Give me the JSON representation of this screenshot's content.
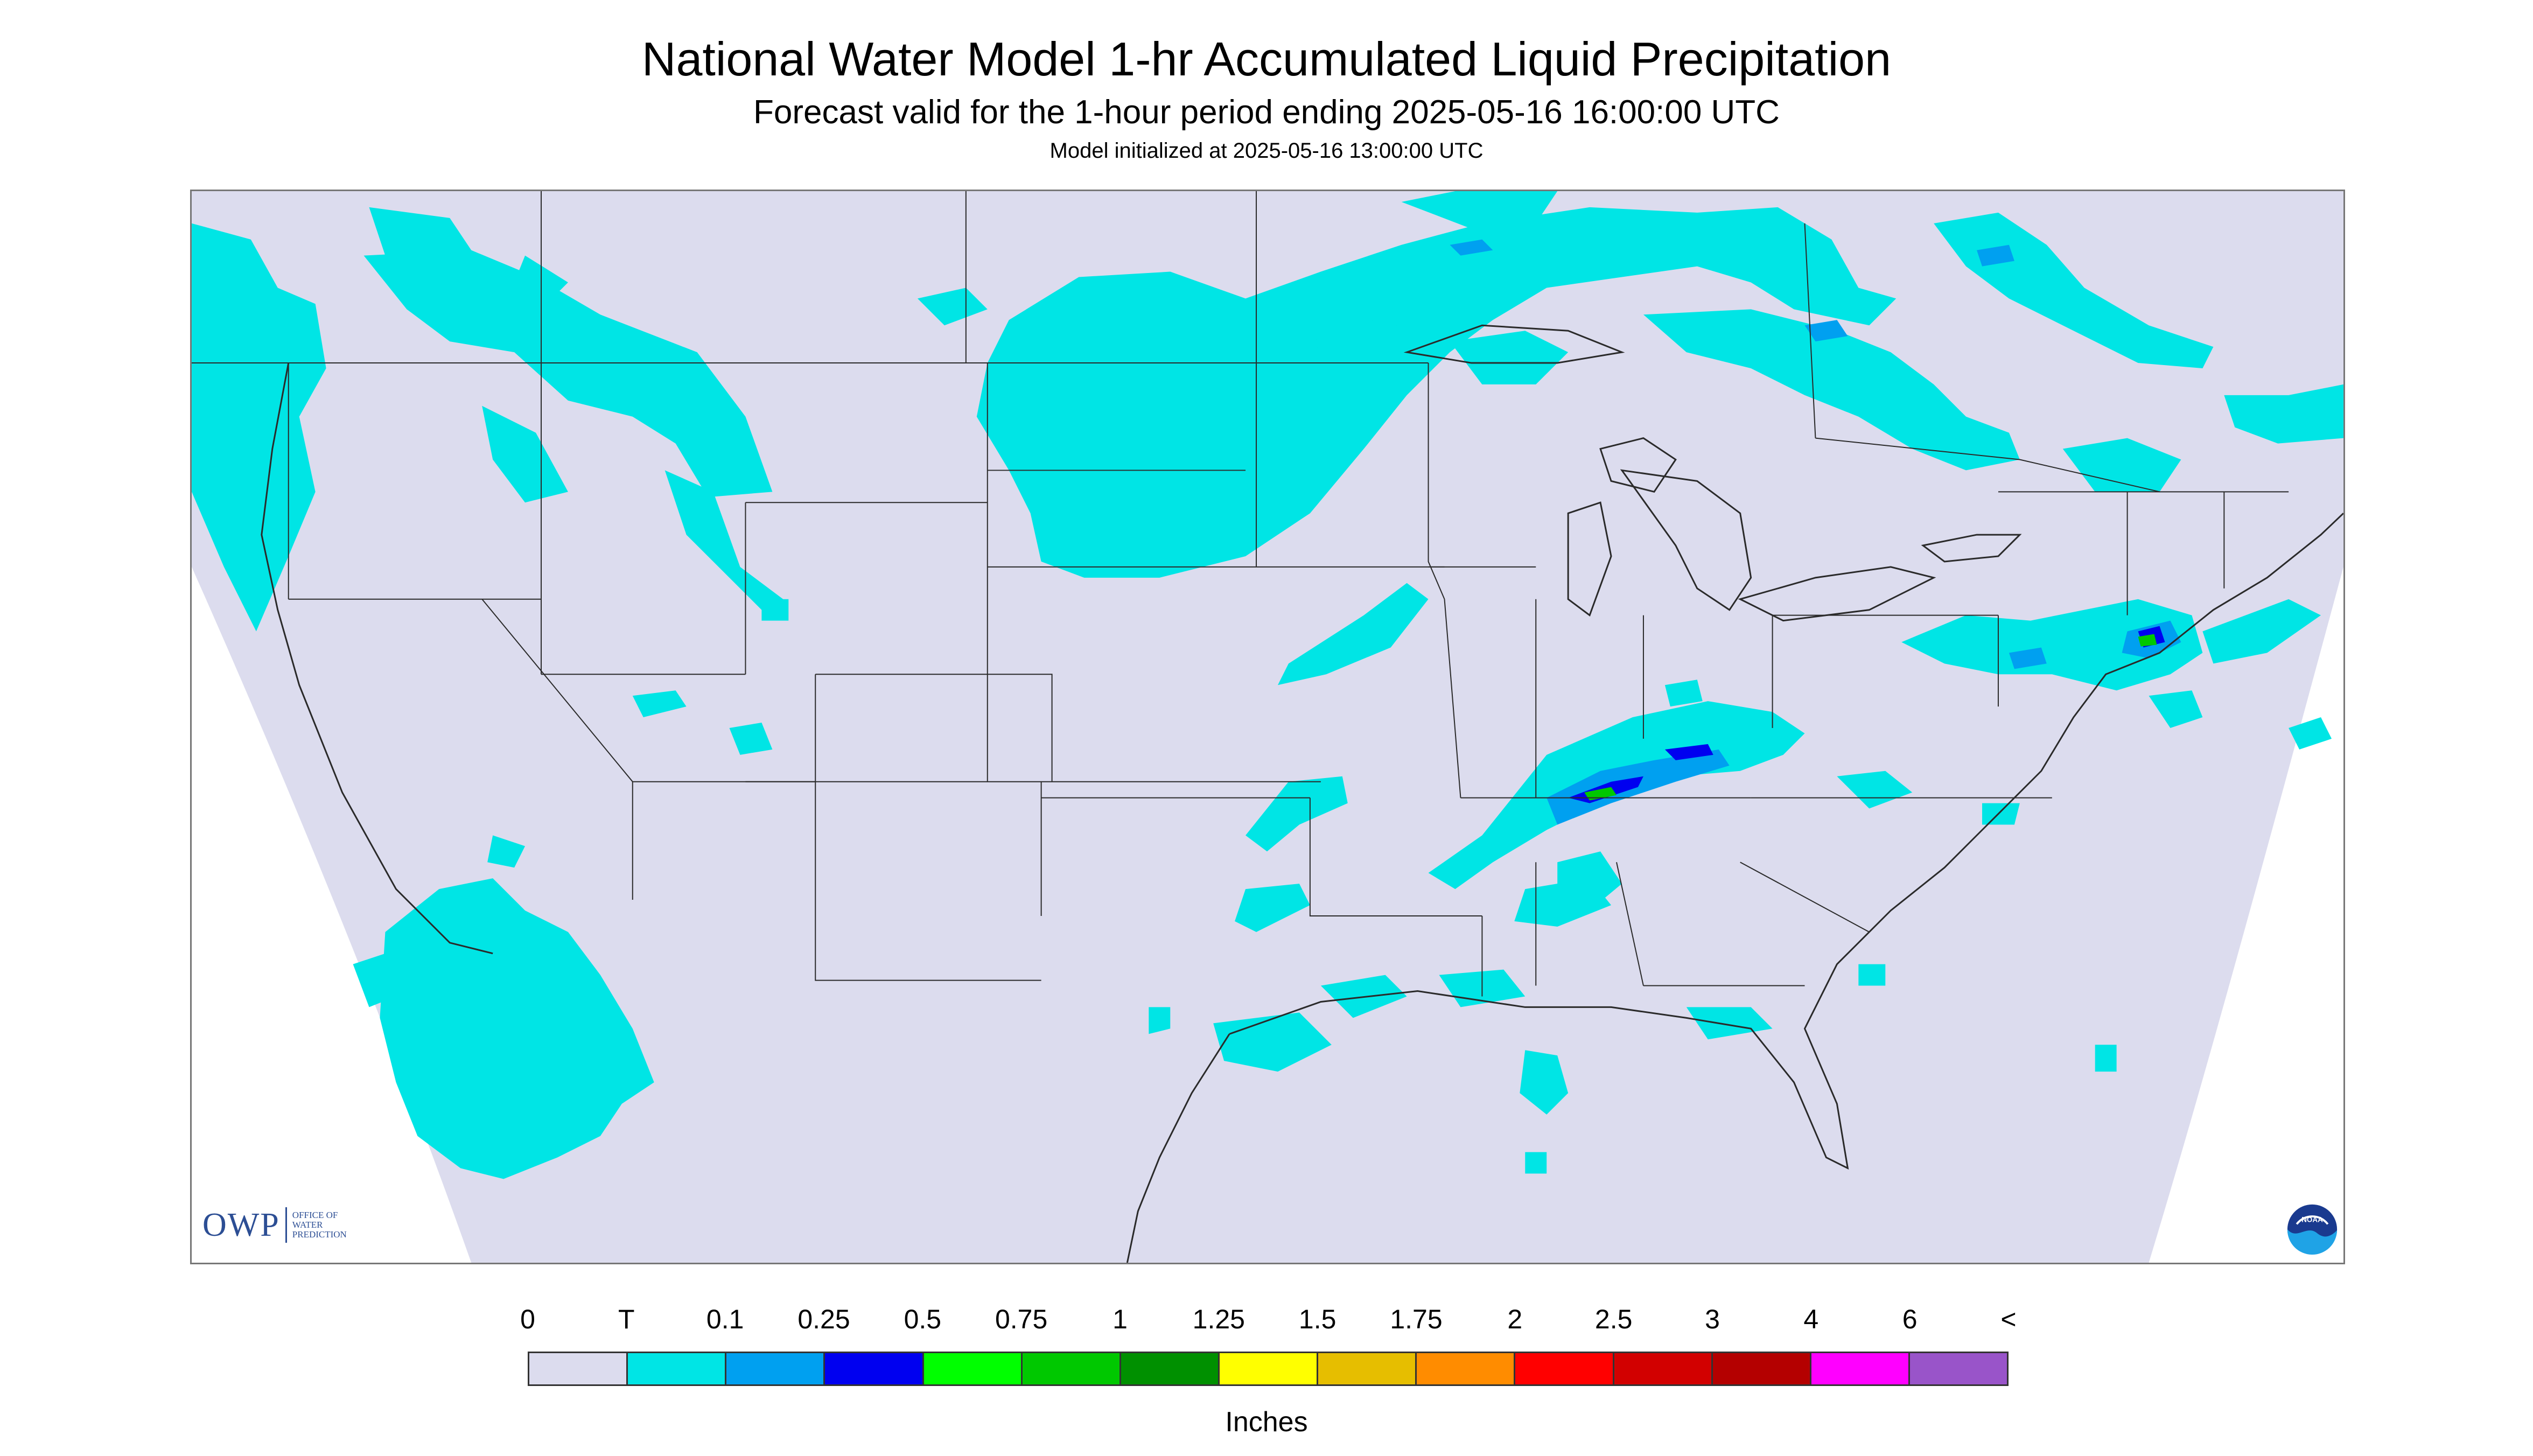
{
  "title": "National Water Model 1-hr Accumulated Liquid Precipitation",
  "subtitle": "Forecast valid for the 1-hour period ending 2025-05-16 16:00:00 UTC",
  "init_line": "Model initialized at 2025-05-16 13:00:00 UTC",
  "owp_logo": {
    "abbrev": "OWP",
    "line1": "Office of",
    "line2": "Water",
    "line3": "Prediction"
  },
  "noaa_logo": {
    "text": "NOAA"
  },
  "colors": {
    "no_precip": "#dcdcee",
    "trace": "#00e5e5",
    "outside_grid": "#ffffff",
    "boundaries": "#2a2a2a"
  },
  "legend": {
    "ticks": [
      "0",
      "T",
      "0.1",
      "0.25",
      "0.5",
      "0.75",
      "1",
      "1.25",
      "1.5",
      "1.75",
      "2",
      "2.5",
      "3",
      "4",
      "6",
      "<"
    ],
    "colors": [
      "#dcdcee",
      "#00e5e5",
      "#00a0f0",
      "#0000f0",
      "#00ff00",
      "#00c800",
      "#009000",
      "#ffff00",
      "#e6be00",
      "#ff8c00",
      "#ff0000",
      "#d20000",
      "#b40000",
      "#ff00ff",
      "#9954c9"
    ],
    "units": "Inches"
  }
}
